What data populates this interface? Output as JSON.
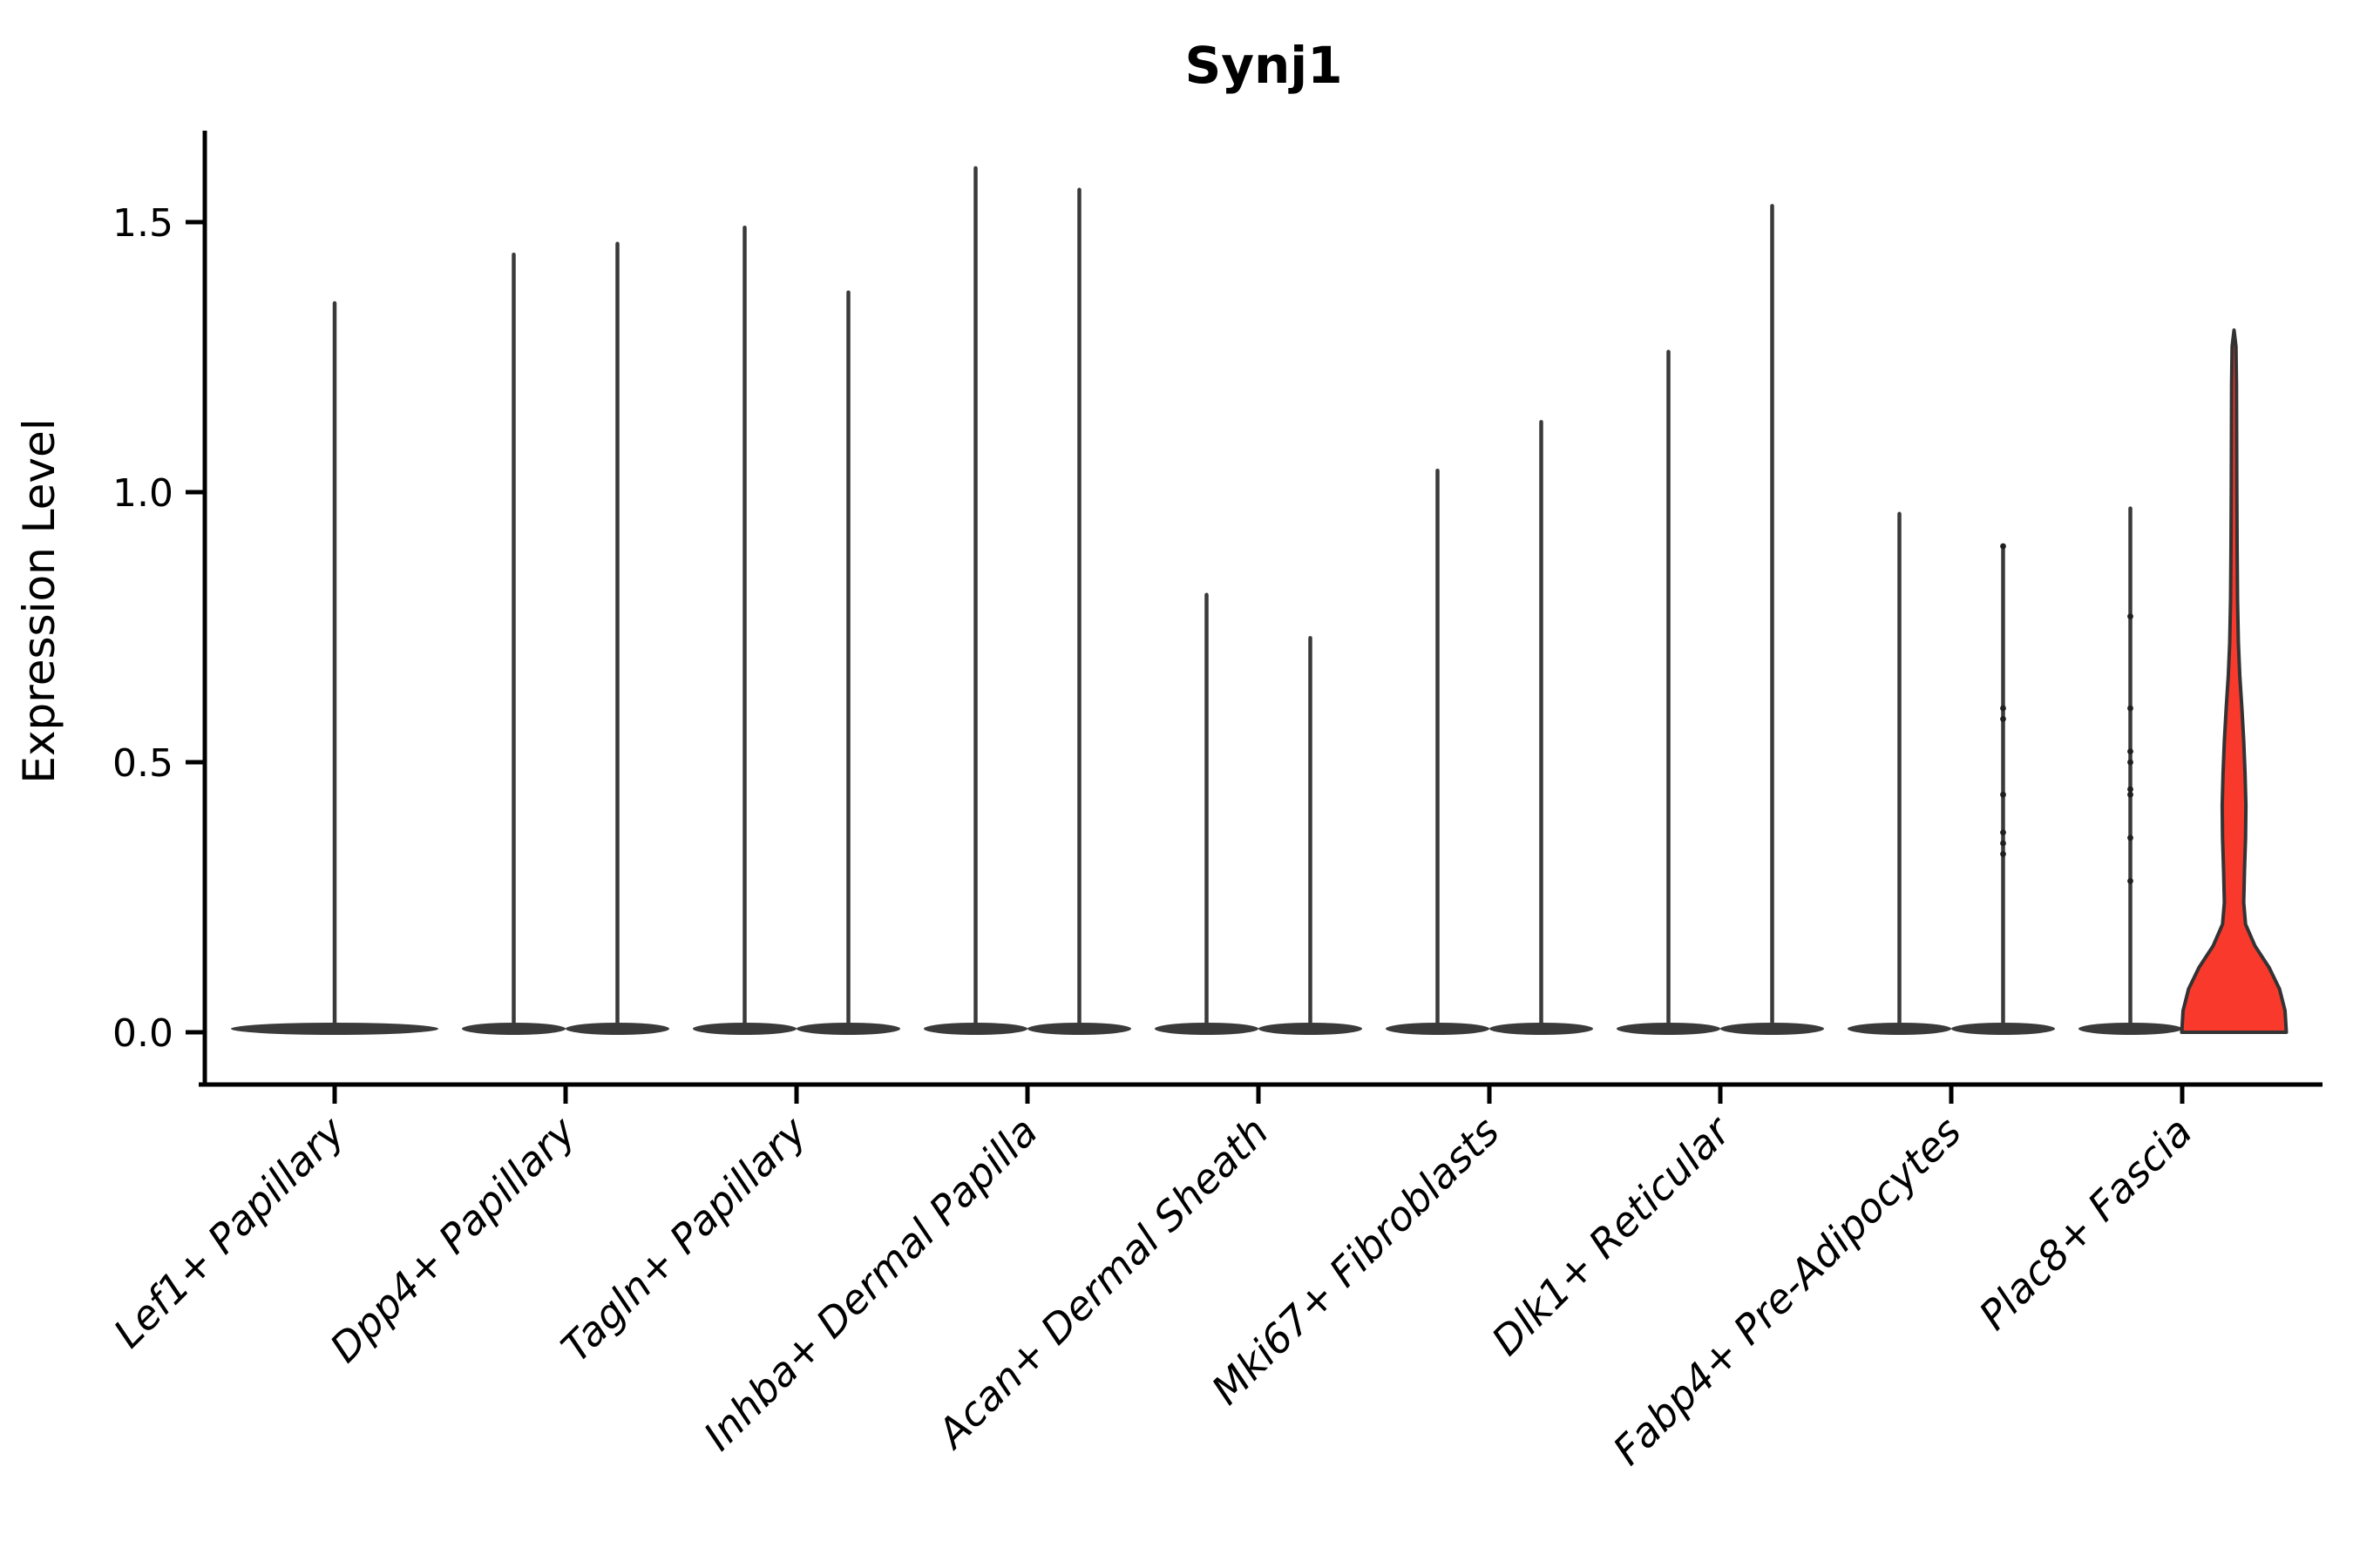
{
  "title": "Synj1",
  "axes": {
    "y_label": "Expression Level",
    "y_ticks": [
      {
        "label": "1.5",
        "value": 1.5
      },
      {
        "label": "1.0",
        "value": 1.0
      },
      {
        "label": "0.5",
        "value": 0.5
      },
      {
        "label": "0.0",
        "value": 0.0
      }
    ]
  },
  "style": {
    "background": "#ffffff",
    "axis_color": "#000000",
    "violin_color": "#3a3a3a",
    "dot_color": "#1f1f1f",
    "highlight_fill": "#f9392c",
    "highlight_outline": "#333333"
  },
  "chart_data": {
    "type": "violin",
    "title": "Synj1",
    "xlabel": "",
    "ylabel": "Expression Level",
    "ylim": [
      -0.1,
      1.67
    ],
    "y_ticks": [
      0.0,
      0.5,
      1.0,
      1.5
    ],
    "legend": "none",
    "grid": false,
    "note": "Zero-inflated single-cell expression: each violin collapses to a flat base at 0 with a thin density spike up to its maximum; Plac8+ Fascia right violin is red-filled with visible density bulge.",
    "categories": [
      "Lef1+ Papillary",
      "Dpp4+ Papillary",
      "Tagln+ Papillary",
      "Inhba+ Dermal Papilla",
      "Acan+ Dermal Sheath",
      "Mki67+ Fibroblasts",
      "Dlk1+ Reticular",
      "Fabp4+ Pre-Adipocytes",
      "Plac8+ Fascia"
    ],
    "violins": [
      {
        "category": "Lef1+ Papillary",
        "pos": "center",
        "max": 1.35
      },
      {
        "category": "Dpp4+ Papillary",
        "pos": "left",
        "max": 1.44
      },
      {
        "category": "Dpp4+ Papillary",
        "pos": "right",
        "max": 1.46
      },
      {
        "category": "Tagln+ Papillary",
        "pos": "left",
        "max": 1.49
      },
      {
        "category": "Tagln+ Papillary",
        "pos": "right",
        "max": 1.37
      },
      {
        "category": "Inhba+ Dermal Papilla",
        "pos": "left",
        "max": 1.6
      },
      {
        "category": "Inhba+ Dermal Papilla",
        "pos": "right",
        "max": 1.56
      },
      {
        "category": "Acan+ Dermal Sheath",
        "pos": "left",
        "max": 0.81
      },
      {
        "category": "Acan+ Dermal Sheath",
        "pos": "right",
        "max": 0.73
      },
      {
        "category": "Mki67+ Fibroblasts",
        "pos": "left",
        "max": 1.04
      },
      {
        "category": "Mki67+ Fibroblasts",
        "pos": "right",
        "max": 1.13
      },
      {
        "category": "Dlk1+ Reticular",
        "pos": "left",
        "max": 1.26
      },
      {
        "category": "Dlk1+ Reticular",
        "pos": "right",
        "max": 1.53
      },
      {
        "category": "Fabp4+ Pre-Adipocytes",
        "pos": "left",
        "max": 0.96
      },
      {
        "category": "Fabp4+ Pre-Adipocytes",
        "pos": "right",
        "max": 0.9,
        "dots": [
          0.9,
          0.6,
          0.58,
          0.44,
          0.37,
          0.35,
          0.33
        ]
      },
      {
        "category": "Plac8+ Fascia",
        "pos": "left",
        "max": 0.97,
        "dots": [
          0.77,
          0.6,
          0.52,
          0.5,
          0.45,
          0.44,
          0.36,
          0.28
        ]
      },
      {
        "category": "Plac8+ Fascia",
        "pos": "right",
        "max": 1.3,
        "highlight": true,
        "profile": [
          [
            0.0,
            1.0
          ],
          [
            0.04,
            0.975
          ],
          [
            0.08,
            0.87
          ],
          [
            0.12,
            0.67
          ],
          [
            0.16,
            0.4
          ],
          [
            0.2,
            0.22
          ],
          [
            0.24,
            0.185
          ],
          [
            0.3,
            0.2
          ],
          [
            0.36,
            0.22
          ],
          [
            0.42,
            0.227
          ],
          [
            0.48,
            0.21
          ],
          [
            0.54,
            0.185
          ],
          [
            0.6,
            0.15
          ],
          [
            0.66,
            0.11
          ],
          [
            0.72,
            0.084
          ],
          [
            0.8,
            0.067
          ],
          [
            0.9,
            0.059
          ],
          [
            1.0,
            0.054
          ],
          [
            1.1,
            0.05
          ],
          [
            1.2,
            0.047
          ],
          [
            1.27,
            0.037
          ],
          [
            1.3,
            0.0
          ]
        ]
      }
    ]
  }
}
